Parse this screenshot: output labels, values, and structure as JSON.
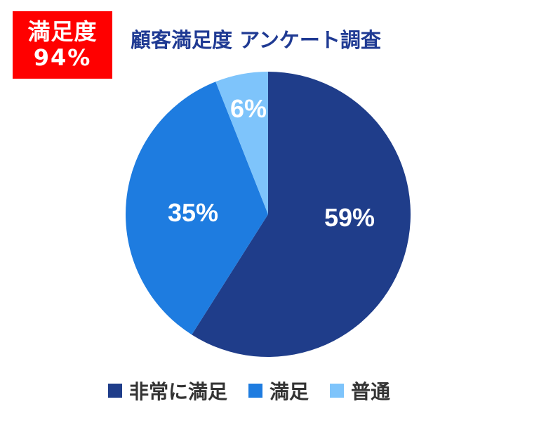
{
  "badge": {
    "label": "満足度",
    "value": "94%"
  },
  "chart_data": {
    "type": "pie",
    "title": "顧客満足度 アンケート調査",
    "categories": [
      "非常に満足",
      "満足",
      "普通"
    ],
    "values": [
      59,
      35,
      6
    ],
    "value_labels": [
      "59%",
      "35%",
      "6%"
    ],
    "colors": [
      "#1f3d8a",
      "#1e7ce0",
      "#7ec4fb"
    ],
    "start_angle": "12 o'clock",
    "direction": "clockwise",
    "legend_position": "bottom"
  },
  "legend": {
    "colors": [
      "#1f3d8a",
      "#1e7ce0",
      "#7ec4fb"
    ]
  }
}
